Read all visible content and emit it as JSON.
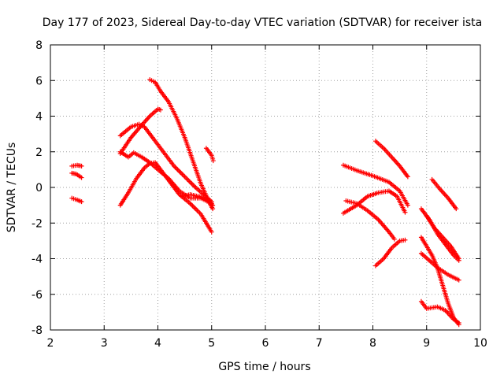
{
  "chart_data": {
    "type": "scatter",
    "title": "Day 177 of 2023, Sidereal Day-to-day VTEC variation (SDTVAR) for receiver ista",
    "xlabel": "GPS time / hours",
    "ylabel": "SDTVAR / TECUs",
    "xlim": [
      2,
      10
    ],
    "ylim": [
      -8,
      8
    ],
    "xticks": [
      "2",
      "3",
      "4",
      "5",
      "6",
      "7",
      "8",
      "9",
      "10"
    ],
    "yticks": [
      "-8",
      "-6",
      "-4",
      "-2",
      "0",
      "2",
      "4",
      "6",
      "8"
    ],
    "grid": true,
    "marker": "+",
    "color": "#ff0000",
    "series": [
      {
        "points": [
          [
            2.4,
            1.2
          ],
          [
            2.5,
            1.25
          ],
          [
            2.58,
            1.2
          ]
        ]
      },
      {
        "points": [
          [
            2.4,
            0.8
          ],
          [
            2.48,
            0.75
          ],
          [
            2.58,
            0.55
          ]
        ]
      },
      {
        "points": [
          [
            2.4,
            -0.6
          ],
          [
            2.5,
            -0.7
          ],
          [
            2.58,
            -0.8
          ]
        ]
      },
      {
        "points": [
          [
            3.3,
            2.9
          ],
          [
            3.5,
            3.4
          ],
          [
            3.65,
            3.55
          ],
          [
            3.75,
            3.4
          ],
          [
            3.9,
            2.8
          ],
          [
            4.1,
            2.0
          ],
          [
            4.3,
            1.2
          ],
          [
            4.5,
            0.6
          ],
          [
            4.7,
            0.0
          ],
          [
            4.85,
            -0.4
          ],
          [
            5.0,
            -0.8
          ]
        ]
      },
      {
        "points": [
          [
            3.3,
            1.9
          ],
          [
            3.5,
            2.8
          ],
          [
            3.7,
            3.5
          ],
          [
            3.85,
            4.0
          ],
          [
            4.0,
            4.4
          ],
          [
            4.05,
            4.35
          ]
        ]
      },
      {
        "points": [
          [
            3.3,
            2.0
          ],
          [
            3.45,
            1.7
          ],
          [
            3.55,
            1.95
          ],
          [
            3.7,
            1.7
          ],
          [
            3.85,
            1.4
          ],
          [
            4.0,
            1.0
          ],
          [
            4.2,
            0.5
          ],
          [
            4.4,
            -0.2
          ],
          [
            4.6,
            -0.6
          ],
          [
            4.8,
            -0.6
          ],
          [
            5.0,
            -0.9
          ]
        ]
      },
      {
        "points": [
          [
            3.3,
            -1.0
          ],
          [
            3.45,
            -0.3
          ],
          [
            3.6,
            0.5
          ],
          [
            3.75,
            1.1
          ],
          [
            3.85,
            1.35
          ],
          [
            3.95,
            1.4
          ],
          [
            4.1,
            0.8
          ],
          [
            4.25,
            0.2
          ],
          [
            4.4,
            -0.4
          ],
          [
            4.6,
            -0.9
          ],
          [
            4.8,
            -1.5
          ],
          [
            5.0,
            -2.5
          ]
        ]
      },
      {
        "points": [
          [
            3.85,
            6.05
          ],
          [
            3.95,
            5.9
          ],
          [
            4.05,
            5.4
          ],
          [
            4.2,
            4.8
          ],
          [
            4.35,
            3.9
          ],
          [
            4.5,
            2.8
          ],
          [
            4.65,
            1.5
          ],
          [
            4.8,
            0.2
          ],
          [
            4.95,
            -0.8
          ],
          [
            5.02,
            -1.2
          ]
        ]
      },
      {
        "points": [
          [
            4.9,
            2.2
          ],
          [
            5.0,
            1.8
          ],
          [
            5.03,
            1.5
          ]
        ]
      },
      {
        "points": [
          [
            4.45,
            -0.5
          ],
          [
            4.6,
            -0.4
          ],
          [
            4.75,
            -0.5
          ],
          [
            4.9,
            -0.6
          ],
          [
            5.02,
            -1.0
          ]
        ]
      },
      {
        "points": [
          [
            7.45,
            1.25
          ],
          [
            7.7,
            0.95
          ],
          [
            8.0,
            0.65
          ],
          [
            8.3,
            0.3
          ],
          [
            8.5,
            -0.2
          ],
          [
            8.65,
            -1.0
          ]
        ]
      },
      {
        "points": [
          [
            7.5,
            -0.75
          ],
          [
            7.7,
            -0.9
          ],
          [
            7.9,
            -1.3
          ],
          [
            8.1,
            -1.8
          ],
          [
            8.3,
            -2.5
          ],
          [
            8.4,
            -2.9
          ]
        ]
      },
      {
        "points": [
          [
            7.45,
            -1.45
          ],
          [
            7.7,
            -1.0
          ],
          [
            7.9,
            -0.5
          ],
          [
            8.1,
            -0.3
          ],
          [
            8.3,
            -0.2
          ],
          [
            8.45,
            -0.5
          ],
          [
            8.6,
            -1.4
          ]
        ]
      },
      {
        "points": [
          [
            8.05,
            2.6
          ],
          [
            8.2,
            2.2
          ],
          [
            8.35,
            1.7
          ],
          [
            8.5,
            1.2
          ],
          [
            8.65,
            0.6
          ]
        ]
      },
      {
        "points": [
          [
            8.05,
            -4.4
          ],
          [
            8.2,
            -4.0
          ],
          [
            8.35,
            -3.4
          ],
          [
            8.5,
            -3.0
          ],
          [
            8.6,
            -2.95
          ]
        ]
      },
      {
        "points": [
          [
            9.1,
            0.45
          ],
          [
            9.25,
            -0.1
          ],
          [
            9.4,
            -0.6
          ],
          [
            9.55,
            -1.2
          ]
        ]
      },
      {
        "points": [
          [
            8.9,
            -1.2
          ],
          [
            9.05,
            -1.8
          ],
          [
            9.2,
            -2.6
          ],
          [
            9.35,
            -3.2
          ],
          [
            9.5,
            -3.8
          ],
          [
            9.6,
            -4.1
          ]
        ]
      },
      {
        "points": [
          [
            8.9,
            -2.8
          ],
          [
            9.0,
            -3.3
          ],
          [
            9.1,
            -3.8
          ],
          [
            9.2,
            -4.5
          ],
          [
            9.3,
            -5.5
          ],
          [
            9.4,
            -6.5
          ],
          [
            9.5,
            -7.3
          ],
          [
            9.6,
            -7.7
          ]
        ]
      },
      {
        "points": [
          [
            8.9,
            -3.7
          ],
          [
            9.05,
            -4.1
          ],
          [
            9.2,
            -4.5
          ],
          [
            9.4,
            -4.9
          ],
          [
            9.6,
            -5.2
          ]
        ]
      },
      {
        "points": [
          [
            8.9,
            -6.4
          ],
          [
            9.0,
            -6.8
          ],
          [
            9.2,
            -6.7
          ],
          [
            9.35,
            -6.9
          ],
          [
            9.5,
            -7.4
          ],
          [
            9.6,
            -7.6
          ]
        ]
      },
      {
        "points": [
          [
            9.0,
            -1.6
          ],
          [
            9.15,
            -2.3
          ],
          [
            9.3,
            -2.8
          ],
          [
            9.45,
            -3.3
          ],
          [
            9.6,
            -4.0
          ]
        ]
      }
    ]
  }
}
